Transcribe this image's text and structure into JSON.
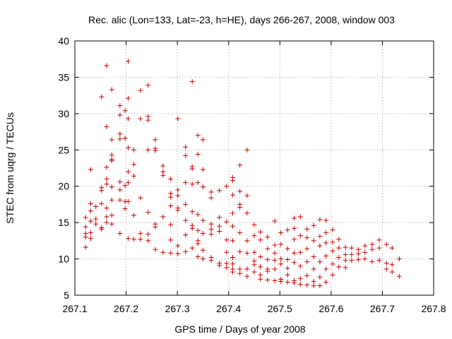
{
  "chart_data": {
    "type": "scatter",
    "title": "Rec. alic (Lon=133, Lat=-23, h=HE), days 266-267, 2008, window 003",
    "xlabel": "GPS time / Days of year 2008",
    "ylabel": "STEC from uqrg / TECUs",
    "xlim": [
      267.1,
      267.8
    ],
    "ylim": [
      5,
      40
    ],
    "xticks": [
      "267.1",
      "267.2",
      "267.3",
      "267.4",
      "267.5",
      "267.6",
      "267.7",
      "267.8"
    ],
    "yticks": [
      "5",
      "10",
      "15",
      "20",
      "25",
      "30",
      "35",
      "40"
    ],
    "marker": "plus",
    "color": "#cc0000",
    "series": [
      {
        "name": "STEC",
        "points": [
          [
            267.121,
            15.7
          ],
          [
            267.121,
            14.4
          ],
          [
            267.121,
            13.5
          ],
          [
            267.121,
            13.0
          ],
          [
            267.121,
            11.6
          ],
          [
            267.131,
            22.3
          ],
          [
            267.131,
            17.6
          ],
          [
            267.131,
            16.6
          ],
          [
            267.131,
            15.2
          ],
          [
            267.131,
            13.6
          ],
          [
            267.131,
            12.8
          ],
          [
            267.141,
            17.2
          ],
          [
            267.141,
            15.5
          ],
          [
            267.141,
            14.8
          ],
          [
            267.152,
            32.3
          ],
          [
            267.152,
            19.8
          ],
          [
            267.152,
            19.4
          ],
          [
            267.152,
            17.6
          ],
          [
            267.152,
            14.3
          ],
          [
            267.152,
            14.1
          ],
          [
            267.162,
            36.6
          ],
          [
            267.162,
            28.2
          ],
          [
            267.162,
            22.6
          ],
          [
            267.162,
            21.0
          ],
          [
            267.162,
            20.3
          ],
          [
            267.162,
            17.0
          ],
          [
            267.162,
            15.8
          ],
          [
            267.162,
            15.0
          ],
          [
            267.172,
            33.3
          ],
          [
            267.172,
            26.4
          ],
          [
            267.172,
            24.3
          ],
          [
            267.172,
            23.7
          ],
          [
            267.172,
            23.5
          ],
          [
            267.172,
            19.9
          ],
          [
            267.172,
            18.1
          ],
          [
            267.172,
            16.0
          ],
          [
            267.172,
            14.8
          ],
          [
            267.188,
            31.1
          ],
          [
            267.188,
            29.8
          ],
          [
            267.188,
            27.2
          ],
          [
            267.188,
            26.5
          ],
          [
            267.188,
            20.6
          ],
          [
            267.188,
            19.5
          ],
          [
            267.188,
            18.1
          ],
          [
            267.188,
            13.5
          ],
          [
            267.198,
            30.4
          ],
          [
            267.198,
            26.6
          ],
          [
            267.198,
            20.1
          ],
          [
            267.198,
            17.9
          ],
          [
            267.198,
            16.9
          ],
          [
            267.204,
            37.2
          ],
          [
            267.204,
            32.1
          ],
          [
            267.204,
            29.3
          ],
          [
            267.204,
            25.3
          ],
          [
            267.204,
            22.0
          ],
          [
            267.204,
            20.5
          ],
          [
            267.204,
            17.9
          ],
          [
            267.204,
            12.8
          ],
          [
            267.215,
            25.0
          ],
          [
            267.215,
            23.0
          ],
          [
            267.215,
            21.4
          ],
          [
            267.215,
            16.0
          ],
          [
            267.215,
            12.7
          ],
          [
            267.228,
            33.2
          ],
          [
            267.228,
            29.3
          ],
          [
            267.228,
            18.4
          ],
          [
            267.228,
            13.5
          ],
          [
            267.228,
            12.7
          ],
          [
            267.243,
            33.9
          ],
          [
            267.243,
            29.6
          ],
          [
            267.243,
            29.1
          ],
          [
            267.243,
            25.0
          ],
          [
            267.243,
            16.4
          ],
          [
            267.243,
            13.4
          ],
          [
            267.243,
            12.5
          ],
          [
            267.257,
            26.4
          ],
          [
            267.257,
            25.2
          ],
          [
            267.257,
            24.9
          ],
          [
            267.257,
            14.8
          ],
          [
            267.257,
            14.4
          ],
          [
            267.257,
            11.3
          ],
          [
            267.272,
            22.8
          ],
          [
            267.272,
            22.0
          ],
          [
            267.272,
            21.5
          ],
          [
            267.272,
            15.8
          ],
          [
            267.272,
            10.9
          ],
          [
            267.287,
            21.0
          ],
          [
            267.287,
            19.0
          ],
          [
            267.287,
            18.5
          ],
          [
            267.287,
            17.3
          ],
          [
            267.287,
            14.7
          ],
          [
            267.287,
            12.6
          ],
          [
            267.287,
            10.8
          ],
          [
            267.301,
            29.3
          ],
          [
            267.301,
            19.5
          ],
          [
            267.301,
            18.7
          ],
          [
            267.301,
            17.0
          ],
          [
            267.301,
            16.7
          ],
          [
            267.301,
            11.8
          ],
          [
            267.301,
            10.7
          ],
          [
            267.316,
            25.4
          ],
          [
            267.316,
            24.2
          ],
          [
            267.316,
            20.5
          ],
          [
            267.316,
            17.5
          ],
          [
            267.316,
            15.3
          ],
          [
            267.316,
            13.3
          ],
          [
            267.316,
            11.0
          ],
          [
            267.329,
            34.4
          ],
          [
            267.329,
            22.7
          ],
          [
            267.329,
            22.4
          ],
          [
            267.329,
            20.3
          ],
          [
            267.329,
            16.5
          ],
          [
            267.329,
            14.6
          ],
          [
            267.329,
            14.2
          ],
          [
            267.329,
            11.5
          ],
          [
            267.34,
            27.0
          ],
          [
            267.34,
            24.4
          ],
          [
            267.34,
            20.5
          ],
          [
            267.34,
            16.1
          ],
          [
            267.34,
            13.9
          ],
          [
            267.34,
            12.5
          ],
          [
            267.34,
            12.1
          ],
          [
            267.34,
            10.3
          ],
          [
            267.35,
            26.4
          ],
          [
            267.35,
            22.3
          ],
          [
            267.35,
            19.9
          ],
          [
            267.35,
            15.3
          ],
          [
            267.35,
            13.5
          ],
          [
            267.35,
            11.2
          ],
          [
            267.35,
            10.0
          ],
          [
            267.366,
            19.2
          ],
          [
            267.366,
            18.4
          ],
          [
            267.366,
            14.8
          ],
          [
            267.366,
            14.1
          ],
          [
            267.366,
            13.4
          ],
          [
            267.366,
            10.2
          ],
          [
            267.366,
            9.8
          ],
          [
            267.382,
            19.4
          ],
          [
            267.382,
            15.7
          ],
          [
            267.382,
            14.5
          ],
          [
            267.382,
            13.8
          ],
          [
            267.382,
            9.4
          ],
          [
            267.382,
            9.1
          ],
          [
            267.396,
            20.0
          ],
          [
            267.396,
            15.1
          ],
          [
            267.396,
            12.6
          ],
          [
            267.396,
            10.9
          ],
          [
            267.396,
            9.4
          ],
          [
            267.396,
            8.8
          ],
          [
            267.408,
            21.2
          ],
          [
            267.408,
            20.8
          ],
          [
            267.408,
            18.8
          ],
          [
            267.408,
            16.3
          ],
          [
            267.408,
            14.5
          ],
          [
            267.408,
            12.5
          ],
          [
            267.408,
            10.2
          ],
          [
            267.408,
            9.3
          ],
          [
            267.408,
            8.6
          ],
          [
            267.408,
            8.2
          ],
          [
            267.422,
            22.9
          ],
          [
            267.422,
            19.3
          ],
          [
            267.422,
            17.5
          ],
          [
            267.422,
            17.1
          ],
          [
            267.422,
            13.6
          ],
          [
            267.422,
            11.0
          ],
          [
            267.422,
            8.6
          ],
          [
            267.422,
            8.0
          ],
          [
            267.436,
            25.0
          ],
          [
            267.436,
            18.7
          ],
          [
            267.436,
            16.3
          ],
          [
            267.436,
            12.5
          ],
          [
            267.436,
            10.8
          ],
          [
            267.436,
            8.6
          ],
          [
            267.436,
            7.6
          ],
          [
            267.45,
            14.7
          ],
          [
            267.45,
            13.2
          ],
          [
            267.45,
            10.9
          ],
          [
            267.45,
            9.7
          ],
          [
            267.45,
            9.2
          ],
          [
            267.45,
            8.2
          ],
          [
            267.462,
            13.7
          ],
          [
            267.462,
            12.6
          ],
          [
            267.462,
            10.3
          ],
          [
            267.462,
            8.9
          ],
          [
            267.462,
            7.8
          ],
          [
            267.462,
            7.2
          ],
          [
            267.476,
            13.0
          ],
          [
            267.476,
            11.4
          ],
          [
            267.476,
            9.9
          ],
          [
            267.476,
            8.6
          ],
          [
            267.476,
            8.3
          ],
          [
            267.476,
            7.1
          ],
          [
            267.49,
            15.2
          ],
          [
            267.49,
            11.9
          ],
          [
            267.49,
            10.8
          ],
          [
            267.49,
            9.8
          ],
          [
            267.49,
            8.6
          ],
          [
            267.49,
            7.0
          ],
          [
            267.502,
            13.6
          ],
          [
            267.502,
            12.0
          ],
          [
            267.502,
            10.0
          ],
          [
            267.502,
            9.3
          ],
          [
            267.502,
            7.2
          ],
          [
            267.502,
            6.9
          ],
          [
            267.515,
            14.0
          ],
          [
            267.515,
            11.4
          ],
          [
            267.515,
            9.9
          ],
          [
            267.515,
            8.7
          ],
          [
            267.515,
            7.8
          ],
          [
            267.515,
            6.8
          ],
          [
            267.528,
            15.6
          ],
          [
            267.528,
            14.2
          ],
          [
            267.528,
            12.7
          ],
          [
            267.528,
            10.8
          ],
          [
            267.528,
            9.5
          ],
          [
            267.528,
            7.0
          ],
          [
            267.528,
            6.7
          ],
          [
            267.54,
            15.8
          ],
          [
            267.54,
            13.2
          ],
          [
            267.54,
            10.9
          ],
          [
            267.54,
            9.0
          ],
          [
            267.54,
            7.3
          ],
          [
            267.54,
            6.5
          ],
          [
            267.553,
            14.1
          ],
          [
            267.553,
            12.9
          ],
          [
            267.553,
            11.4
          ],
          [
            267.553,
            9.6
          ],
          [
            267.553,
            7.7
          ],
          [
            267.553,
            6.4
          ],
          [
            267.566,
            14.6
          ],
          [
            267.566,
            12.5
          ],
          [
            267.566,
            10.3
          ],
          [
            267.566,
            8.6
          ],
          [
            267.566,
            6.9
          ],
          [
            267.566,
            6.3
          ],
          [
            267.578,
            15.4
          ],
          [
            267.578,
            13.1
          ],
          [
            267.578,
            11.8
          ],
          [
            267.578,
            9.6
          ],
          [
            267.578,
            7.5
          ],
          [
            267.578,
            6.3
          ],
          [
            267.59,
            15.3
          ],
          [
            267.59,
            13.6
          ],
          [
            267.59,
            12.2
          ],
          [
            267.59,
            10.4
          ],
          [
            267.59,
            8.6
          ],
          [
            267.59,
            6.8
          ],
          [
            267.603,
            14.0
          ],
          [
            267.603,
            12.3
          ],
          [
            267.603,
            11.1
          ],
          [
            267.603,
            9.3
          ],
          [
            267.603,
            7.8
          ],
          [
            267.615,
            12.7
          ],
          [
            267.615,
            11.5
          ],
          [
            267.615,
            10.2
          ],
          [
            267.615,
            8.9
          ],
          [
            267.628,
            11.6
          ],
          [
            267.628,
            10.6
          ],
          [
            267.628,
            9.8
          ],
          [
            267.628,
            8.8
          ],
          [
            267.64,
            11.5
          ],
          [
            267.64,
            10.6
          ],
          [
            267.64,
            9.8
          ],
          [
            267.653,
            11.3
          ],
          [
            267.653,
            10.7
          ],
          [
            267.653,
            9.9
          ],
          [
            267.666,
            11.8
          ],
          [
            267.666,
            10.9
          ],
          [
            267.666,
            10.0
          ],
          [
            267.68,
            12.0
          ],
          [
            267.68,
            11.3
          ],
          [
            267.68,
            9.6
          ],
          [
            267.694,
            12.6
          ],
          [
            267.694,
            11.5
          ],
          [
            267.694,
            9.8
          ],
          [
            267.708,
            12.0
          ],
          [
            267.708,
            9.4
          ],
          [
            267.708,
            8.6
          ],
          [
            267.719,
            11.5
          ],
          [
            267.719,
            9.2
          ],
          [
            267.719,
            8.2
          ],
          [
            267.733,
            10.0
          ],
          [
            267.733,
            7.6
          ]
        ]
      }
    ]
  }
}
